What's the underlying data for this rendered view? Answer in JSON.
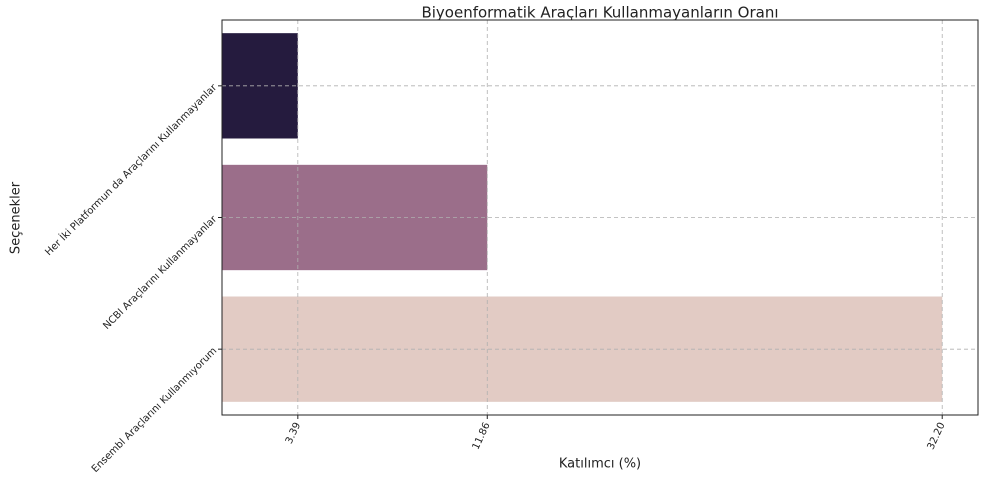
{
  "chart_data": {
    "type": "barh",
    "title": "Biyoenformatik Araçları Kullanmayanların Oranı",
    "xlabel": "Katılımcı (%)",
    "ylabel": "Seçenekler",
    "categories": [
      "Her İki Platformun da Araçlarını Kullanmayanlar",
      "NCBI Araçlarını Kullanmayanlar",
      "Ensembl Araçlarını Kullanmıyorum"
    ],
    "values": [
      3.39,
      11.86,
      32.2
    ],
    "colors": [
      "#251b3e",
      "#9b6e8a",
      "#e2cbc4"
    ],
    "xlim": [
      0,
      33.8
    ],
    "xticks": [
      3.39,
      11.86,
      {
        "value": 32.2,
        "label": "32.20"
      }
    ],
    "grid": true
  }
}
